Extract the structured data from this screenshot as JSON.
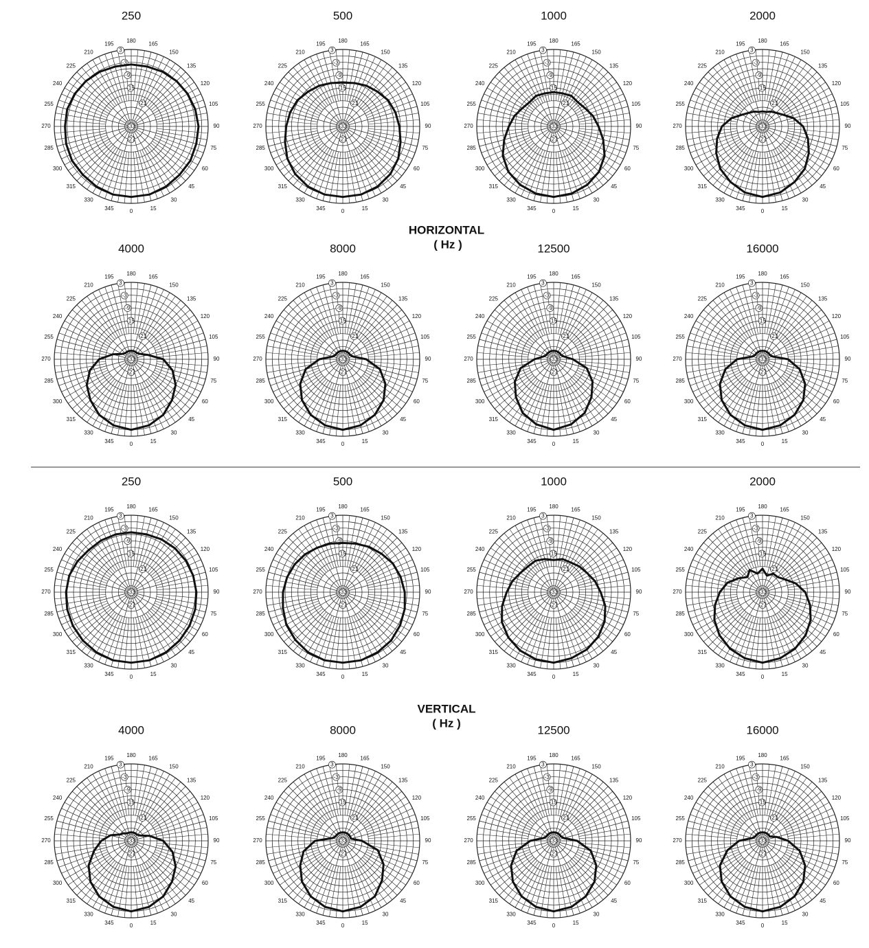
{
  "sections": [
    {
      "label": "HORIZONTAL",
      "unit": "( Hz )"
    },
    {
      "label": "VERTICAL",
      "unit": "( Hz )"
    }
  ],
  "chart_data": [
    {
      "type": "polar",
      "title": "250",
      "color": "#111111",
      "rlim": [
        -33,
        3
      ],
      "rticks": [
        3,
        -3,
        -9,
        -15,
        -21,
        -27,
        -33
      ],
      "thetaticks": [
        0,
        15,
        30,
        45,
        60,
        75,
        90,
        105,
        120,
        135,
        150,
        165,
        180,
        195,
        210,
        225,
        240,
        255,
        270,
        285,
        300,
        315,
        330,
        345
      ],
      "x": [
        0,
        15,
        30,
        45,
        60,
        75,
        90,
        105,
        120,
        135,
        150,
        165,
        180,
        195,
        210,
        225,
        240,
        255,
        270,
        285,
        300,
        315,
        330,
        345
      ],
      "values": [
        0,
        0,
        -0.5,
        -1,
        -1,
        -1.5,
        -1.5,
        -2,
        -2.5,
        -3,
        -3.5,
        -4,
        -4,
        -4,
        -3.5,
        -3,
        -2.5,
        -2,
        -2,
        -1.5,
        -1,
        -1,
        -0.5,
        0
      ]
    },
    {
      "type": "polar",
      "title": "500",
      "color": "#111111",
      "rlim": [
        -33,
        3
      ],
      "rticks": [
        3,
        -3,
        -9,
        -15,
        -21,
        -27,
        -33
      ],
      "thetaticks": [
        0,
        15,
        30,
        45,
        60,
        75,
        90,
        105,
        120,
        135,
        150,
        165,
        180,
        195,
        210,
        225,
        240,
        255,
        270,
        285,
        300,
        315,
        330,
        345
      ],
      "x": [
        0,
        15,
        30,
        45,
        60,
        75,
        90,
        105,
        120,
        135,
        150,
        165,
        180,
        195,
        210,
        225,
        240,
        255,
        270,
        285,
        300,
        315,
        330,
        345
      ],
      "values": [
        0,
        0,
        -0.5,
        -1.5,
        -3,
        -5,
        -6.5,
        -7.5,
        -8.5,
        -10,
        -11,
        -12,
        -12.5,
        -12,
        -11,
        -10,
        -8.5,
        -7.5,
        -6.5,
        -5,
        -3,
        -1.5,
        -0.5,
        0
      ]
    },
    {
      "type": "polar",
      "title": "1000",
      "color": "#111111",
      "rlim": [
        -33,
        3
      ],
      "rticks": [
        3,
        -3,
        -9,
        -15,
        -21,
        -27,
        -33
      ],
      "thetaticks": [
        0,
        15,
        30,
        45,
        60,
        75,
        90,
        105,
        120,
        135,
        150,
        165,
        180,
        195,
        210,
        225,
        240,
        255,
        270,
        285,
        300,
        315,
        330,
        345
      ],
      "x": [
        0,
        15,
        30,
        45,
        60,
        75,
        90,
        105,
        120,
        135,
        150,
        165,
        180,
        195,
        210,
        225,
        240,
        255,
        270,
        285,
        300,
        315,
        330,
        345
      ],
      "values": [
        0,
        -0.5,
        -1.5,
        -3,
        -5.5,
        -9,
        -12,
        -14,
        -16,
        -17,
        -16.5,
        -17,
        -17,
        -17,
        -16.5,
        -17,
        -16,
        -14,
        -12,
        -9,
        -5.5,
        -3,
        -1.5,
        -0.5
      ]
    },
    {
      "type": "polar",
      "title": "2000",
      "color": "#111111",
      "rlim": [
        -33,
        3
      ],
      "rticks": [
        3,
        -3,
        -9,
        -15,
        -21,
        -27,
        -33
      ],
      "thetaticks": [
        0,
        15,
        30,
        45,
        60,
        75,
        90,
        105,
        120,
        135,
        150,
        165,
        180,
        195,
        210,
        225,
        240,
        255,
        270,
        285,
        300,
        315,
        330,
        345
      ],
      "x": [
        0,
        15,
        30,
        45,
        60,
        75,
        90,
        105,
        120,
        135,
        150,
        165,
        180,
        195,
        210,
        225,
        240,
        255,
        270,
        285,
        300,
        315,
        330,
        345
      ],
      "values": [
        0,
        -1,
        -3,
        -5,
        -8,
        -11,
        -14,
        -18,
        -22,
        -24,
        -25,
        -26,
        -26,
        -26,
        -25,
        -24,
        -22,
        -18,
        -14,
        -11,
        -8,
        -5,
        -3,
        -1
      ]
    },
    {
      "type": "polar",
      "title": "4000",
      "color": "#111111",
      "rlim": [
        -33,
        3
      ],
      "rticks": [
        3,
        -3,
        -9,
        -15,
        -21,
        -27,
        -33
      ],
      "thetaticks": [
        0,
        15,
        30,
        45,
        60,
        75,
        90,
        105,
        120,
        135,
        150,
        165,
        180,
        195,
        210,
        225,
        240,
        255,
        270,
        285,
        300,
        315,
        330,
        345
      ],
      "x": [
        0,
        15,
        30,
        45,
        60,
        75,
        90,
        105,
        120,
        135,
        150,
        165,
        180,
        195,
        210,
        225,
        240,
        255,
        270,
        285,
        300,
        315,
        330,
        345
      ],
      "values": [
        0,
        -1,
        -3,
        -6,
        -9,
        -13,
        -18,
        -25,
        -28,
        -29,
        -29,
        -29,
        -29,
        -29,
        -29,
        -29,
        -28,
        -24,
        -18,
        -13,
        -9,
        -6,
        -3,
        -1
      ]
    },
    {
      "type": "polar",
      "title": "8000",
      "color": "#111111",
      "rlim": [
        -33,
        3
      ],
      "rticks": [
        3,
        -3,
        -9,
        -15,
        -21,
        -27,
        -33
      ],
      "thetaticks": [
        0,
        15,
        30,
        45,
        60,
        75,
        90,
        105,
        120,
        135,
        150,
        165,
        180,
        195,
        210,
        225,
        240,
        255,
        270,
        285,
        300,
        315,
        330,
        345
      ],
      "x": [
        0,
        15,
        30,
        45,
        60,
        75,
        90,
        105,
        120,
        135,
        150,
        165,
        180,
        195,
        210,
        225,
        240,
        255,
        270,
        285,
        300,
        315,
        330,
        345
      ],
      "values": [
        0,
        -1,
        -3,
        -6,
        -10,
        -15,
        -22,
        -28,
        -29,
        -29,
        -29,
        -29,
        -29,
        -29,
        -29,
        -29,
        -29,
        -28,
        -22,
        -15,
        -10,
        -6,
        -3,
        -1
      ]
    },
    {
      "type": "polar",
      "title": "12500",
      "color": "#111111",
      "rlim": [
        -33,
        3
      ],
      "rticks": [
        3,
        -3,
        -9,
        -15,
        -21,
        -27,
        -33
      ],
      "thetaticks": [
        0,
        15,
        30,
        45,
        60,
        75,
        90,
        105,
        120,
        135,
        150,
        165,
        180,
        195,
        210,
        225,
        240,
        255,
        270,
        285,
        300,
        315,
        330,
        345
      ],
      "x": [
        0,
        15,
        30,
        45,
        60,
        75,
        90,
        105,
        120,
        135,
        150,
        165,
        180,
        195,
        210,
        225,
        240,
        255,
        270,
        285,
        300,
        315,
        330,
        345
      ],
      "values": [
        0,
        -1.5,
        -4,
        -8,
        -12,
        -17,
        -24,
        -28,
        -29,
        -29,
        -29,
        -29,
        -29,
        -29,
        -29,
        -29,
        -29,
        -28,
        -24,
        -17,
        -12,
        -8,
        -4,
        -1.5
      ]
    },
    {
      "type": "polar",
      "title": "16000",
      "color": "#111111",
      "rlim": [
        -33,
        3
      ],
      "rticks": [
        3,
        -3,
        -9,
        -15,
        -21,
        -27,
        -33
      ],
      "thetaticks": [
        0,
        15,
        30,
        45,
        60,
        75,
        90,
        105,
        120,
        135,
        150,
        165,
        180,
        195,
        210,
        225,
        240,
        255,
        270,
        285,
        300,
        315,
        330,
        345
      ],
      "x": [
        0,
        15,
        30,
        45,
        60,
        75,
        90,
        105,
        120,
        135,
        150,
        165,
        180,
        195,
        210,
        225,
        240,
        255,
        270,
        285,
        300,
        315,
        330,
        345
      ],
      "values": [
        0,
        -1,
        -3,
        -6,
        -10,
        -15,
        -21,
        -28,
        -29,
        -29,
        -29,
        -29,
        -29,
        -29,
        -29,
        -29,
        -29,
        -28,
        -21,
        -15,
        -10,
        -6,
        -3,
        -1
      ]
    },
    {
      "type": "polar",
      "title": "250",
      "color": "#111111",
      "rlim": [
        -33,
        3
      ],
      "rticks": [
        3,
        -3,
        -9,
        -15,
        -21,
        -27,
        -33
      ],
      "thetaticks": [
        0,
        15,
        30,
        45,
        60,
        75,
        90,
        105,
        120,
        135,
        150,
        165,
        180,
        195,
        210,
        225,
        240,
        255,
        270,
        285,
        300,
        315,
        330,
        345
      ],
      "x": [
        0,
        15,
        30,
        45,
        60,
        75,
        90,
        105,
        120,
        135,
        150,
        165,
        180,
        195,
        210,
        225,
        240,
        255,
        270,
        285,
        300,
        315,
        330,
        345
      ],
      "values": [
        0,
        0,
        -0.5,
        -1,
        -1.5,
        -2,
        -2.5,
        -3,
        -3.5,
        -4,
        -4.5,
        -5,
        -5,
        -5,
        -5,
        -5,
        -4,
        -3,
        -2.5,
        -2,
        -1.5,
        -1,
        -0.5,
        0
      ]
    },
    {
      "type": "polar",
      "title": "500",
      "color": "#111111",
      "rlim": [
        -33,
        3
      ],
      "rticks": [
        3,
        -3,
        -9,
        -15,
        -21,
        -27,
        -33
      ],
      "thetaticks": [
        0,
        15,
        30,
        45,
        60,
        75,
        90,
        105,
        120,
        135,
        150,
        165,
        180,
        195,
        210,
        225,
        240,
        255,
        270,
        285,
        300,
        315,
        330,
        345
      ],
      "x": [
        0,
        15,
        30,
        45,
        60,
        75,
        90,
        105,
        120,
        135,
        150,
        165,
        180,
        195,
        210,
        225,
        240,
        255,
        270,
        285,
        300,
        315,
        330,
        345
      ],
      "values": [
        0,
        0,
        -0.5,
        -1,
        -2,
        -3,
        -4,
        -5,
        -6,
        -7.5,
        -8.5,
        -9.5,
        -10,
        -9.5,
        -9,
        -8,
        -7,
        -6,
        -5,
        -4,
        -2.5,
        -1.5,
        -0.5,
        0
      ]
    },
    {
      "type": "polar",
      "title": "1000",
      "color": "#111111",
      "rlim": [
        -33,
        3
      ],
      "rticks": [
        3,
        -3,
        -9,
        -15,
        -21,
        -27,
        -33
      ],
      "thetaticks": [
        0,
        15,
        30,
        45,
        60,
        75,
        90,
        105,
        120,
        135,
        150,
        165,
        180,
        195,
        210,
        225,
        240,
        255,
        270,
        285,
        300,
        315,
        330,
        345
      ],
      "x": [
        0,
        15,
        30,
        45,
        60,
        75,
        90,
        105,
        120,
        135,
        150,
        165,
        180,
        195,
        210,
        225,
        240,
        255,
        270,
        285,
        300,
        315,
        330,
        345
      ],
      "values": [
        0,
        -1,
        -2,
        -3.5,
        -5.5,
        -8,
        -11,
        -13,
        -15,
        -16,
        -17,
        -17,
        -18,
        -17,
        -16,
        -16,
        -15,
        -13,
        -11,
        -8,
        -5,
        -3,
        -1.5,
        -0.5
      ]
    },
    {
      "type": "polar",
      "title": "2000",
      "color": "#111111",
      "rlim": [
        -33,
        3
      ],
      "rticks": [
        3,
        -3,
        -9,
        -15,
        -21,
        -27,
        -33
      ],
      "thetaticks": [
        0,
        15,
        30,
        45,
        60,
        75,
        90,
        105,
        120,
        135,
        150,
        165,
        180,
        195,
        210,
        225,
        240,
        255,
        270,
        285,
        300,
        315,
        330,
        345
      ],
      "x": [
        0,
        15,
        30,
        45,
        60,
        75,
        90,
        105,
        120,
        135,
        150,
        165,
        180,
        195,
        210,
        225,
        240,
        255,
        270,
        285,
        300,
        315,
        330,
        345
      ],
      "values": [
        0,
        -1,
        -2.5,
        -4.5,
        -7,
        -10,
        -13,
        -17,
        -21,
        -23,
        -23,
        -25,
        -22,
        -24,
        -21,
        -23,
        -20,
        -16,
        -13,
        -10,
        -7,
        -4.5,
        -2.5,
        -1
      ]
    },
    {
      "type": "polar",
      "title": "4000",
      "color": "#111111",
      "rlim": [
        -33,
        3
      ],
      "rticks": [
        3,
        -3,
        -9,
        -15,
        -21,
        -27,
        -33
      ],
      "thetaticks": [
        0,
        15,
        30,
        45,
        60,
        75,
        90,
        105,
        120,
        135,
        150,
        165,
        180,
        195,
        210,
        225,
        240,
        255,
        270,
        285,
        300,
        315,
        330,
        345
      ],
      "x": [
        0,
        15,
        30,
        45,
        60,
        75,
        90,
        105,
        120,
        135,
        150,
        165,
        180,
        195,
        210,
        225,
        240,
        255,
        270,
        285,
        300,
        315,
        330,
        345
      ],
      "values": [
        0,
        -1,
        -3,
        -6,
        -9,
        -13,
        -18,
        -24,
        -28,
        -29,
        -29,
        -29,
        -29,
        -29,
        -29,
        -28,
        -27,
        -23,
        -19,
        -15,
        -10,
        -6,
        -3,
        -1
      ]
    },
    {
      "type": "polar",
      "title": "8000",
      "color": "#111111",
      "rlim": [
        -33,
        3
      ],
      "rticks": [
        3,
        -3,
        -9,
        -15,
        -21,
        -27,
        -33
      ],
      "thetaticks": [
        0,
        15,
        30,
        45,
        60,
        75,
        90,
        105,
        120,
        135,
        150,
        165,
        180,
        195,
        210,
        225,
        240,
        255,
        270,
        285,
        300,
        315,
        330,
        345
      ],
      "x": [
        0,
        15,
        30,
        45,
        60,
        75,
        90,
        105,
        120,
        135,
        150,
        165,
        180,
        195,
        210,
        225,
        240,
        255,
        270,
        285,
        300,
        315,
        330,
        345
      ],
      "values": [
        0,
        -1,
        -3,
        -7,
        -11,
        -16,
        -24,
        -29,
        -29,
        -29,
        -29,
        -29,
        -29,
        -29,
        -29,
        -29,
        -29,
        -28,
        -20,
        -14,
        -10,
        -6,
        -3,
        -1
      ]
    },
    {
      "type": "polar",
      "title": "12500",
      "color": "#111111",
      "rlim": [
        -33,
        3
      ],
      "rticks": [
        3,
        -3,
        -9,
        -15,
        -21,
        -27,
        -33
      ],
      "thetaticks": [
        0,
        15,
        30,
        45,
        60,
        75,
        90,
        105,
        120,
        135,
        150,
        165,
        180,
        195,
        210,
        225,
        240,
        255,
        270,
        285,
        300,
        315,
        330,
        345
      ],
      "x": [
        0,
        15,
        30,
        45,
        60,
        75,
        90,
        105,
        120,
        135,
        150,
        165,
        180,
        195,
        210,
        225,
        240,
        255,
        270,
        285,
        300,
        315,
        330,
        345
      ],
      "values": [
        0,
        -1,
        -3,
        -6,
        -10,
        -15,
        -22,
        -28,
        -29,
        -29,
        -29,
        -29,
        -29,
        -29,
        -29,
        -29,
        -29,
        -28,
        -22,
        -15,
        -10,
        -6,
        -3,
        -1
      ]
    },
    {
      "type": "polar",
      "title": "16000",
      "color": "#111111",
      "rlim": [
        -33,
        3
      ],
      "rticks": [
        3,
        -3,
        -9,
        -15,
        -21,
        -27,
        -33
      ],
      "thetaticks": [
        0,
        15,
        30,
        45,
        60,
        75,
        90,
        105,
        120,
        135,
        150,
        165,
        180,
        195,
        210,
        225,
        240,
        255,
        270,
        285,
        300,
        315,
        330,
        345
      ],
      "x": [
        0,
        15,
        30,
        45,
        60,
        75,
        90,
        105,
        120,
        135,
        150,
        165,
        180,
        195,
        210,
        225,
        240,
        255,
        270,
        285,
        300,
        315,
        330,
        345
      ],
      "values": [
        0,
        -1,
        -3,
        -6,
        -10,
        -15,
        -21,
        -26,
        -29,
        -29,
        -29,
        -29,
        -29,
        -29,
        -29,
        -29,
        -29,
        -28,
        -22,
        -16,
        -10,
        -6,
        -3,
        -1
      ]
    }
  ]
}
